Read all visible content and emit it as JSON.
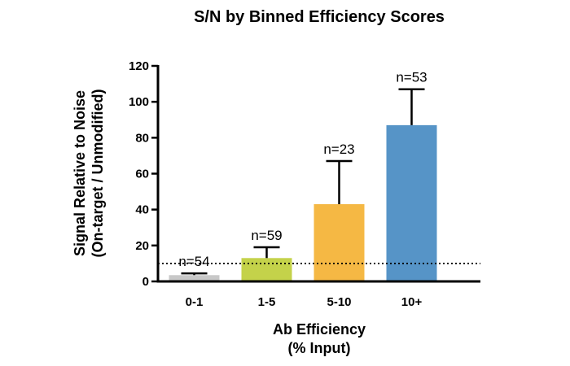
{
  "chart_data": {
    "type": "bar",
    "title": "S/N by Binned Efficiency Scores",
    "xlabel": [
      "Ab Efficiency",
      "(% Input)"
    ],
    "ylabel": [
      "Signal Relative to Noise",
      "(On-target / Unmodified)"
    ],
    "categories": [
      "0-1",
      "1-5",
      "5-10",
      "10+"
    ],
    "values": [
      3.5,
      13,
      43,
      87
    ],
    "error_upper": [
      4.5,
      19,
      67,
      107
    ],
    "n_labels": [
      "n=54",
      "n=59",
      "n=23",
      "n=53"
    ],
    "bar_colors": [
      "#c8c8c8",
      "#c4d24a",
      "#f5b844",
      "#5694c7"
    ],
    "ylim": [
      0,
      120
    ],
    "yticks": [
      0,
      20,
      40,
      60,
      80,
      100,
      120
    ],
    "reference_line": 10,
    "grid": false
  }
}
